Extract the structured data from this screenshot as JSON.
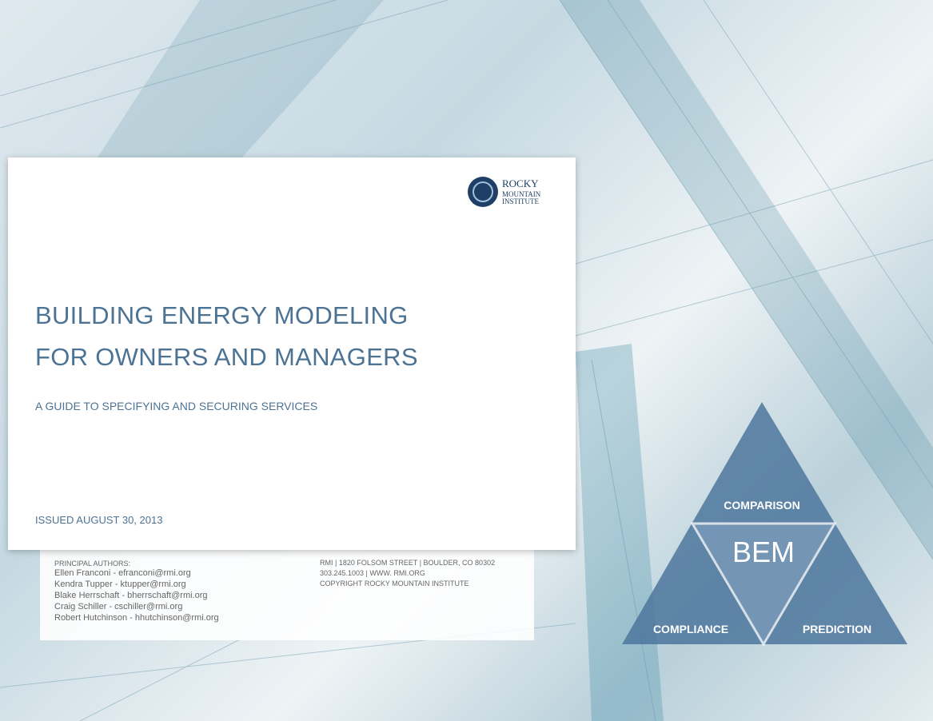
{
  "logo": {
    "line1": "ROCKY",
    "line2": "MOUNTAIN",
    "line3": "INSTITUTE"
  },
  "title": {
    "line1": "BUILDING ENERGY MODELING",
    "line2": "FOR OWNERS AND MANAGERS"
  },
  "subtitle": "A GUIDE TO SPECIFYING AND SECURING SERVICES",
  "issued": "ISSUED AUGUST 30, 2013",
  "authors": {
    "heading": "PRINCIPAL AUTHORS:",
    "names": [
      "Ellen Franconi - efranconi@rmi.org",
      "Kendra Tupper - ktupper@rmi.org",
      "Blake Herrschaft - bherrschaft@rmi.org",
      "Craig Schiller - cschiller@rmi.org",
      "Robert Hutchinson - hhutchinson@rmi.org"
    ]
  },
  "contact": [
    "RMI | 1820 FOLSOM STREET | BOULDER, CO 80302",
    "303.245.1003 | WWW. RMI.ORG",
    "COPYRIGHT ROCKY MOUNTAIN INSTITUTE"
  ],
  "diagram": {
    "top": "COMPARISON",
    "center": "BEM",
    "left": "COMPLIANCE",
    "right": "PREDICTION"
  }
}
